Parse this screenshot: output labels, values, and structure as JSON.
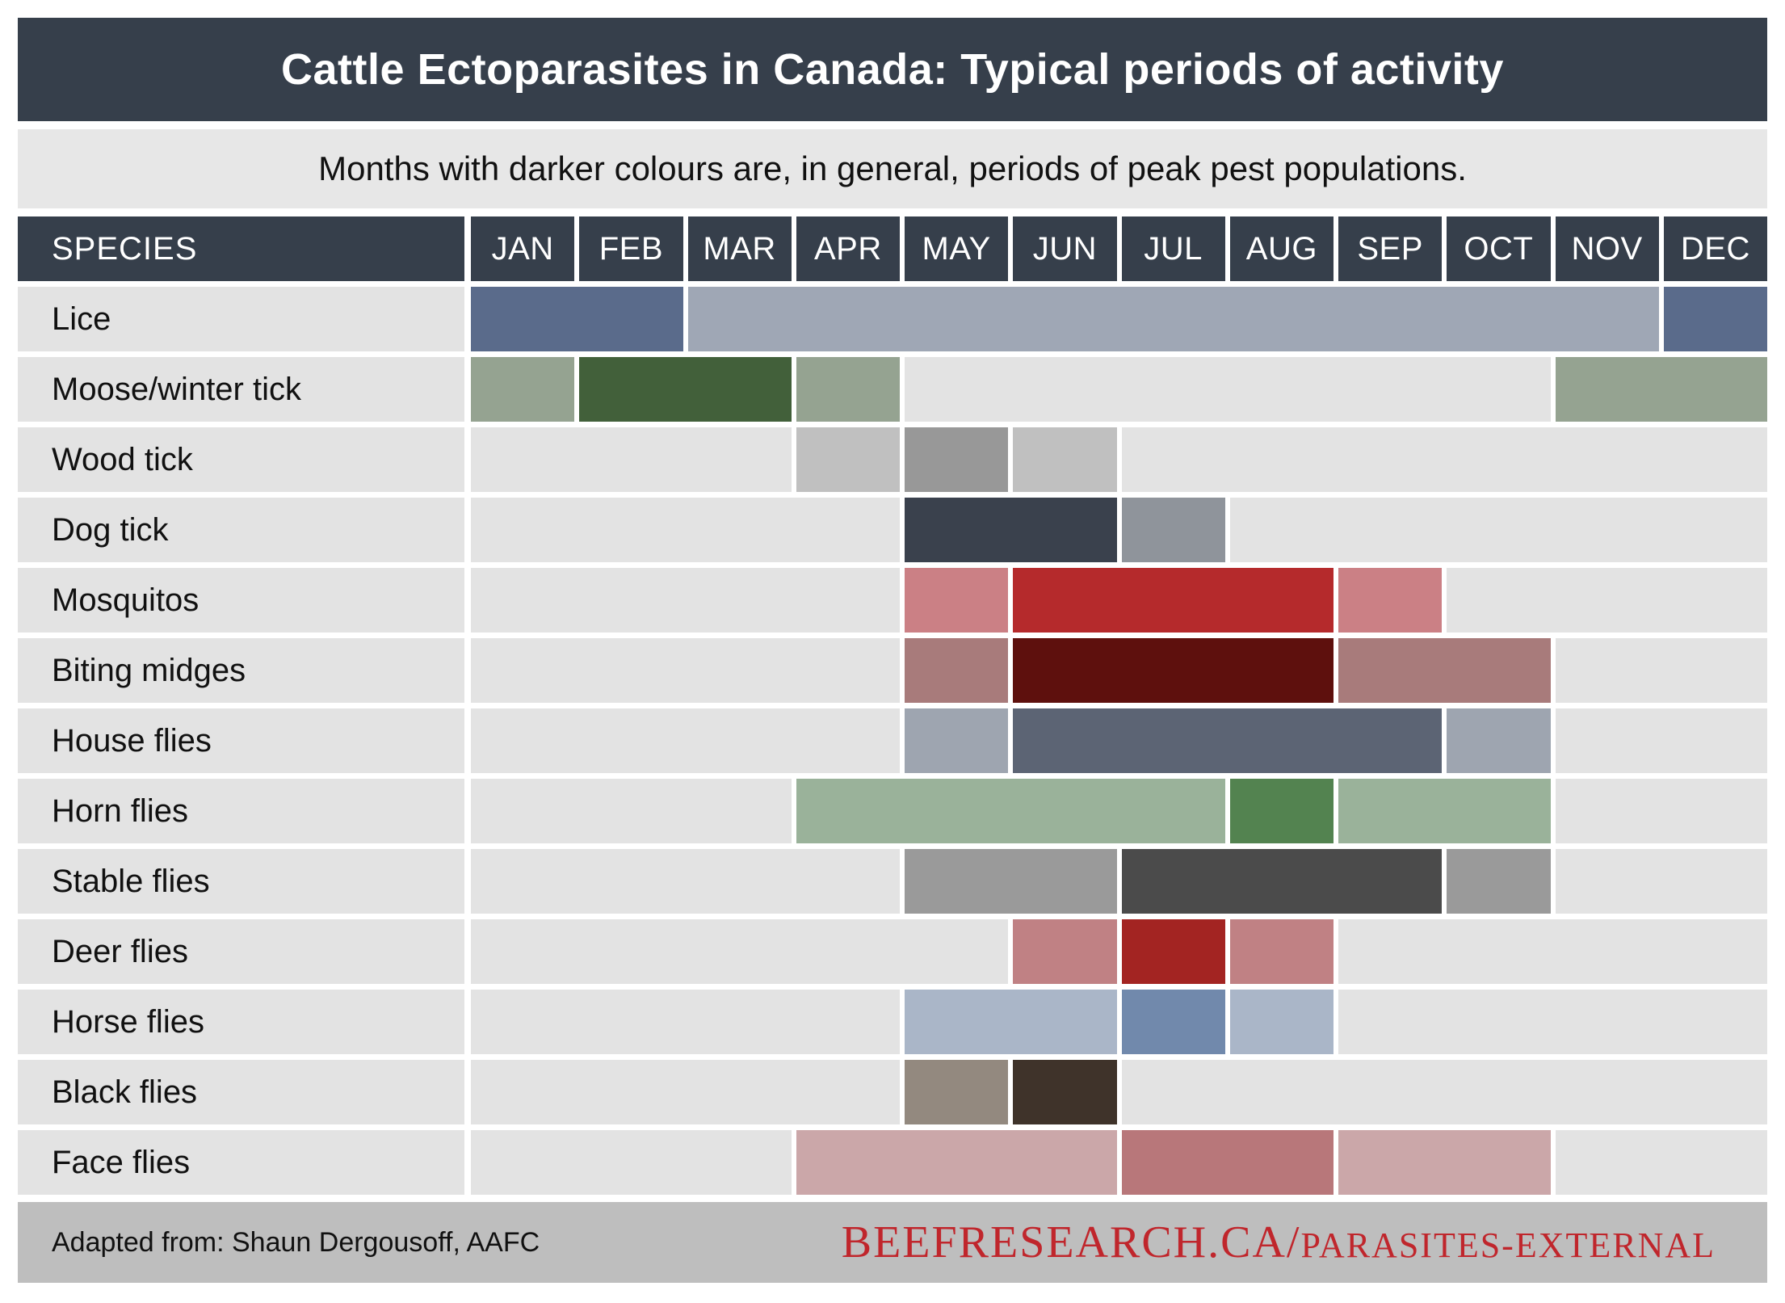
{
  "title": "Cattle Ectoparasites in Canada: Typical periods of activity",
  "subtitle": "Months with darker colours are, in general, periods of peak pest populations.",
  "header": {
    "species_label": "SPECIES",
    "months": [
      "JAN",
      "FEB",
      "MAR",
      "APR",
      "MAY",
      "JUN",
      "JUL",
      "AUG",
      "SEP",
      "OCT",
      "NOV",
      "DEC"
    ]
  },
  "footer": {
    "credit": "Adapted from: Shaun Dergousoff, AAFC",
    "url_main": "BEEFRESEARCH.CA/",
    "url_sub": "PARASITES-EXTERNAL"
  },
  "colors": {
    "title_bar": "#363f4b",
    "subtitle_bg": "#e7e7e7",
    "empty_cell_bg": "#e3e3e3",
    "footer_bg": "#bebebe",
    "url_red": "#c0262c"
  },
  "chart_data": {
    "type": "heatmap",
    "title": "Cattle Ectoparasites in Canada: Typical periods of activity",
    "note": "Months with darker colours are, in general, periods of peak pest populations.",
    "x": [
      "JAN",
      "FEB",
      "MAR",
      "APR",
      "MAY",
      "JUN",
      "JUL",
      "AUG",
      "SEP",
      "OCT",
      "NOV",
      "DEC"
    ],
    "legend_position": "none",
    "grid": false,
    "rows": [
      {
        "species": "Lice",
        "segments": [
          {
            "start": 1,
            "span": 2,
            "months": "JAN-FEB",
            "intensity": "peak",
            "color": "#5a6b8b"
          },
          {
            "start": 3,
            "span": 9,
            "months": "MAR-NOV",
            "intensity": "active",
            "color": "#9fa7b5"
          },
          {
            "start": 12,
            "span": 1,
            "months": "DEC",
            "intensity": "peak",
            "color": "#5a6b8b"
          }
        ]
      },
      {
        "species": "Moose/winter tick",
        "segments": [
          {
            "start": 1,
            "span": 1,
            "months": "JAN",
            "intensity": "active",
            "color": "#95a391"
          },
          {
            "start": 2,
            "span": 2,
            "months": "FEB-MAR",
            "intensity": "peak",
            "color": "#42603a"
          },
          {
            "start": 4,
            "span": 1,
            "months": "APR",
            "intensity": "active",
            "color": "#95a391"
          },
          {
            "start": 5,
            "span": 6,
            "months": "MAY-OCT",
            "intensity": "none",
            "color": "#e3e3e3"
          },
          {
            "start": 11,
            "span": 2,
            "months": "NOV-DEC",
            "intensity": "active",
            "color": "#95a391"
          }
        ]
      },
      {
        "species": "Wood tick",
        "segments": [
          {
            "start": 1,
            "span": 3,
            "months": "JAN-MAR",
            "intensity": "none",
            "color": "#e3e3e3"
          },
          {
            "start": 4,
            "span": 1,
            "months": "APR",
            "intensity": "active",
            "color": "#c0c0c0"
          },
          {
            "start": 5,
            "span": 1,
            "months": "MAY",
            "intensity": "peak",
            "color": "#989898"
          },
          {
            "start": 6,
            "span": 1,
            "months": "JUN",
            "intensity": "active",
            "color": "#c0c0c0"
          },
          {
            "start": 7,
            "span": 6,
            "months": "JUL-DEC",
            "intensity": "none",
            "color": "#e3e3e3"
          }
        ]
      },
      {
        "species": "Dog tick",
        "segments": [
          {
            "start": 1,
            "span": 4,
            "months": "JAN-APR",
            "intensity": "none",
            "color": "#e3e3e3"
          },
          {
            "start": 5,
            "span": 2,
            "months": "MAY-JUN",
            "intensity": "peak",
            "color": "#3a414d"
          },
          {
            "start": 7,
            "span": 1,
            "months": "JUL",
            "intensity": "active",
            "color": "#8f949b"
          },
          {
            "start": 8,
            "span": 5,
            "months": "AUG-DEC",
            "intensity": "none",
            "color": "#e3e3e3"
          }
        ]
      },
      {
        "species": "Mosquitos",
        "segments": [
          {
            "start": 1,
            "span": 4,
            "months": "JAN-APR",
            "intensity": "none",
            "color": "#e3e3e3"
          },
          {
            "start": 5,
            "span": 1,
            "months": "MAY",
            "intensity": "active",
            "color": "#cb8085"
          },
          {
            "start": 6,
            "span": 3,
            "months": "JUN-AUG",
            "intensity": "peak",
            "color": "#b52a2c"
          },
          {
            "start": 9,
            "span": 1,
            "months": "SEP",
            "intensity": "active",
            "color": "#cb8085"
          },
          {
            "start": 10,
            "span": 3,
            "months": "OCT-DEC",
            "intensity": "none",
            "color": "#e3e3e3"
          }
        ]
      },
      {
        "species": "Biting midges",
        "segments": [
          {
            "start": 1,
            "span": 4,
            "months": "JAN-APR",
            "intensity": "none",
            "color": "#e3e3e3"
          },
          {
            "start": 5,
            "span": 1,
            "months": "MAY",
            "intensity": "active",
            "color": "#a87b7b"
          },
          {
            "start": 6,
            "span": 3,
            "months": "JUN-AUG",
            "intensity": "peak",
            "color": "#5e100d"
          },
          {
            "start": 9,
            "span": 2,
            "months": "SEP-OCT",
            "intensity": "active",
            "color": "#a87b7b"
          },
          {
            "start": 11,
            "span": 2,
            "months": "NOV-DEC",
            "intensity": "none",
            "color": "#e3e3e3"
          }
        ]
      },
      {
        "species": "House flies",
        "segments": [
          {
            "start": 1,
            "span": 4,
            "months": "JAN-APR",
            "intensity": "none",
            "color": "#e3e3e3"
          },
          {
            "start": 5,
            "span": 1,
            "months": "MAY",
            "intensity": "active",
            "color": "#9ea5b0"
          },
          {
            "start": 6,
            "span": 4,
            "months": "JUN-SEP",
            "intensity": "peak",
            "color": "#5c6474"
          },
          {
            "start": 10,
            "span": 1,
            "months": "OCT",
            "intensity": "active",
            "color": "#9ea5b0"
          },
          {
            "start": 11,
            "span": 2,
            "months": "NOV-DEC",
            "intensity": "none",
            "color": "#e3e3e3"
          }
        ]
      },
      {
        "species": "Horn flies",
        "segments": [
          {
            "start": 1,
            "span": 3,
            "months": "JAN-MAR",
            "intensity": "none",
            "color": "#e3e3e3"
          },
          {
            "start": 4,
            "span": 4,
            "months": "APR-JUL",
            "intensity": "active",
            "color": "#9ab29a"
          },
          {
            "start": 8,
            "span": 1,
            "months": "AUG",
            "intensity": "peak",
            "color": "#538350"
          },
          {
            "start": 9,
            "span": 2,
            "months": "SEP-OCT",
            "intensity": "active",
            "color": "#9ab29a"
          },
          {
            "start": 11,
            "span": 2,
            "months": "NOV-DEC",
            "intensity": "none",
            "color": "#e3e3e3"
          }
        ]
      },
      {
        "species": "Stable flies",
        "segments": [
          {
            "start": 1,
            "span": 4,
            "months": "JAN-APR",
            "intensity": "none",
            "color": "#e3e3e3"
          },
          {
            "start": 5,
            "span": 2,
            "months": "MAY-JUN",
            "intensity": "active",
            "color": "#9a9a9a"
          },
          {
            "start": 7,
            "span": 3,
            "months": "JUL-SEP",
            "intensity": "peak",
            "color": "#4b4b4b"
          },
          {
            "start": 10,
            "span": 1,
            "months": "OCT",
            "intensity": "active",
            "color": "#9a9a9a"
          },
          {
            "start": 11,
            "span": 2,
            "months": "NOV-DEC",
            "intensity": "none",
            "color": "#e3e3e3"
          }
        ]
      },
      {
        "species": "Deer flies",
        "segments": [
          {
            "start": 1,
            "span": 5,
            "months": "JAN-MAY",
            "intensity": "none",
            "color": "#e3e3e3"
          },
          {
            "start": 6,
            "span": 1,
            "months": "JUN",
            "intensity": "active",
            "color": "#c08184"
          },
          {
            "start": 7,
            "span": 1,
            "months": "JUL",
            "intensity": "peak",
            "color": "#a32422"
          },
          {
            "start": 8,
            "span": 1,
            "months": "AUG",
            "intensity": "active",
            "color": "#c08184"
          },
          {
            "start": 9,
            "span": 4,
            "months": "SEP-DEC",
            "intensity": "none",
            "color": "#e3e3e3"
          }
        ]
      },
      {
        "species": "Horse flies",
        "segments": [
          {
            "start": 1,
            "span": 4,
            "months": "JAN-APR",
            "intensity": "none",
            "color": "#e3e3e3"
          },
          {
            "start": 5,
            "span": 2,
            "months": "MAY-JUN",
            "intensity": "active",
            "color": "#aab6c8"
          },
          {
            "start": 7,
            "span": 1,
            "months": "JUL",
            "intensity": "peak",
            "color": "#7189ac"
          },
          {
            "start": 8,
            "span": 1,
            "months": "AUG",
            "intensity": "active",
            "color": "#aab6c8"
          },
          {
            "start": 9,
            "span": 4,
            "months": "SEP-DEC",
            "intensity": "none",
            "color": "#e3e3e3"
          }
        ]
      },
      {
        "species": "Black flies",
        "segments": [
          {
            "start": 1,
            "span": 4,
            "months": "JAN-APR",
            "intensity": "none",
            "color": "#e3e3e3"
          },
          {
            "start": 5,
            "span": 1,
            "months": "MAY",
            "intensity": "active",
            "color": "#93897f"
          },
          {
            "start": 6,
            "span": 1,
            "months": "JUN",
            "intensity": "peak",
            "color": "#3f332a"
          },
          {
            "start": 7,
            "span": 6,
            "months": "JUL-DEC",
            "intensity": "none",
            "color": "#e3e3e3"
          }
        ]
      },
      {
        "species": "Face flies",
        "segments": [
          {
            "start": 1,
            "span": 3,
            "months": "JAN-MAR",
            "intensity": "none",
            "color": "#e3e3e3"
          },
          {
            "start": 4,
            "span": 3,
            "months": "APR-JUN",
            "intensity": "active",
            "color": "#cba7a9"
          },
          {
            "start": 7,
            "span": 2,
            "months": "JUL-AUG",
            "intensity": "peak",
            "color": "#b8777a"
          },
          {
            "start": 9,
            "span": 2,
            "months": "SEP-OCT",
            "intensity": "active",
            "color": "#cba7a9"
          },
          {
            "start": 11,
            "span": 2,
            "months": "NOV-DEC",
            "intensity": "none",
            "color": "#e3e3e3"
          }
        ]
      }
    ]
  }
}
